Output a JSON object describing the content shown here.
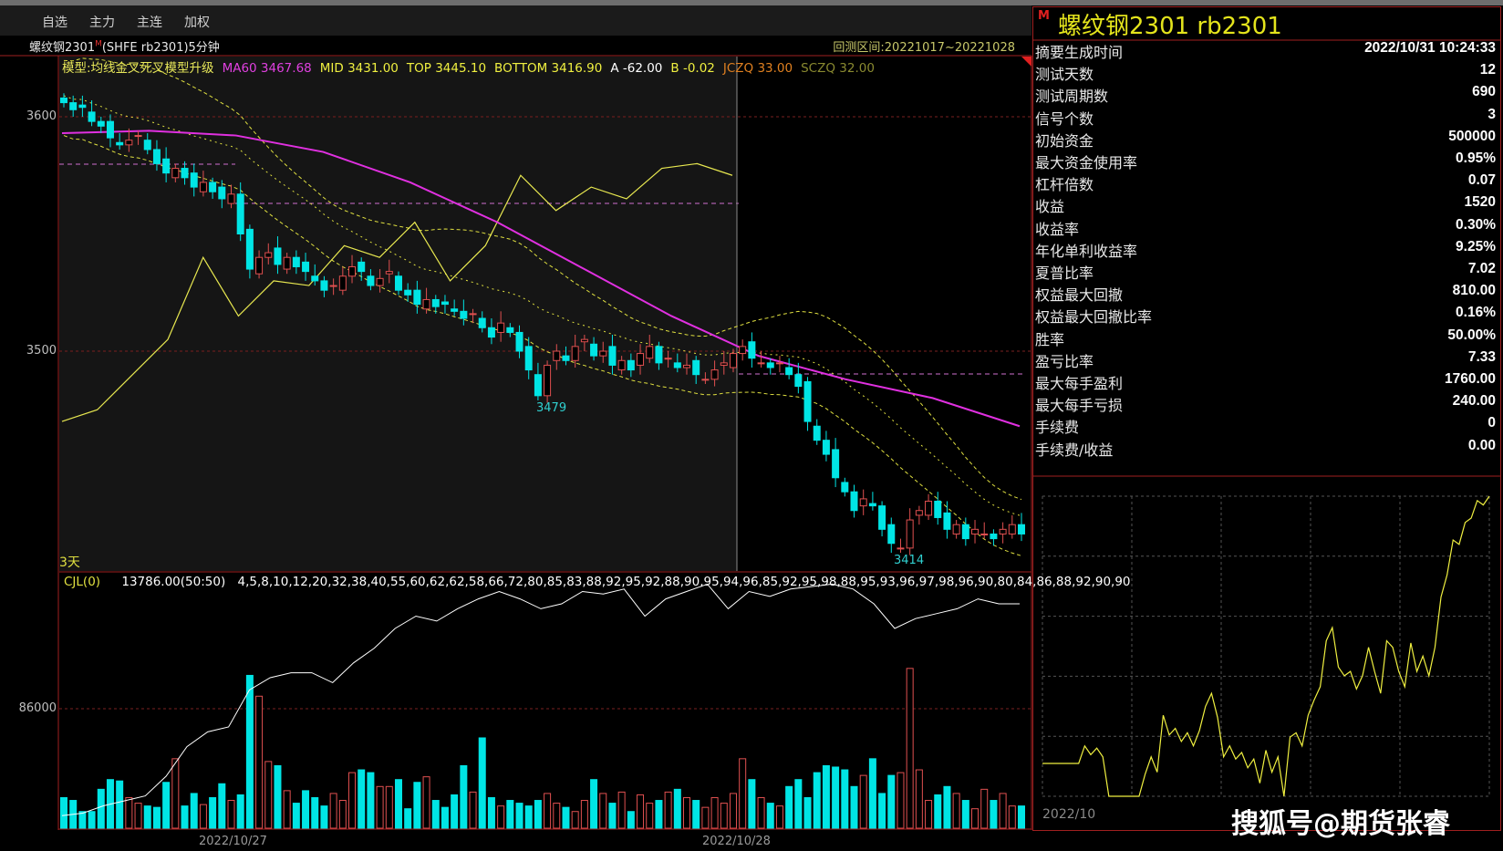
{
  "menu": [
    "自选",
    "主力",
    "主连",
    "加权"
  ],
  "chart": {
    "title": "螺纹钢2301",
    "title_sup": "M",
    "title_rest": "(SHFE rb2301)5分钟",
    "range": "回测区间:20221017~20221028",
    "legend": [
      {
        "text": "模型:均线金叉死叉模型升级",
        "color": "#e8e85a"
      },
      {
        "text": "MA60 3467.68",
        "color": "#e040e0"
      },
      {
        "text": "MID 3431.00",
        "color": "#f0f040"
      },
      {
        "text": "TOP 3445.10",
        "color": "#f0f040"
      },
      {
        "text": "BOTTOM 3416.90",
        "color": "#f0f040"
      },
      {
        "text": "A -62.00",
        "color": "#ffffff"
      },
      {
        "text": "B -0.02",
        "color": "#f0f040"
      },
      {
        "text": "JCZQ 33.00",
        "color": "#e08020"
      },
      {
        "text": "SCZQ 32.00",
        "color": "#8a8a30"
      }
    ],
    "y_ticks": [
      "3600",
      "3500"
    ],
    "period_label": "3天",
    "low_labels": [
      "3479",
      "3414"
    ],
    "dates": [
      "2022/10/27",
      "2022/10/28"
    ],
    "closes": [
      3606,
      3603,
      3604,
      3598,
      3596,
      3591,
      3588,
      3590,
      3592,
      3586,
      3580,
      3576,
      3578,
      3574,
      3570,
      3572,
      3568,
      3565,
      3567,
      3550,
      3535,
      3540,
      3542,
      3537,
      3540,
      3536,
      3534,
      3530,
      3526,
      3528,
      3532,
      3536,
      3534,
      3528,
      3531,
      3534,
      3526,
      3524,
      3520,
      3522,
      3519,
      3520,
      3517,
      3514,
      3516,
      3510,
      3506,
      3512,
      3508,
      3500,
      3492,
      3481,
      3494,
      3500,
      3496,
      3502,
      3505,
      3498,
      3500,
      3494,
      3496,
      3492,
      3499,
      3502,
      3495,
      3497,
      3493,
      3494,
      3490,
      3488,
      3492,
      3495,
      3499,
      3502,
      3497,
      3495,
      3493,
      3495,
      3490,
      3485,
      3470,
      3462,
      3456,
      3446,
      3440,
      3432,
      3437,
      3434,
      3424,
      3418,
      3416,
      3428,
      3432,
      3436,
      3429,
      3424,
      3426,
      3420,
      3424,
      3422,
      3420,
      3424,
      3426,
      3422
    ],
    "ma60": [
      3593,
      3594,
      3592,
      3585,
      3572,
      3555,
      3535,
      3515,
      3498,
      3488,
      3480,
      3468
    ],
    "indicator": [
      3470,
      3475,
      3490,
      3505,
      3540,
      3515,
      3530,
      3528,
      3545,
      3540,
      3555,
      3530,
      3545,
      3575,
      3560,
      3570,
      3565,
      3578,
      3580,
      3575
    ],
    "colors": {
      "up": "#e05050",
      "down": "#00e5e5",
      "ma60": "#e030e0",
      "band": "#e0e040",
      "grid": "#7a2020"
    }
  },
  "volume": {
    "label": "CJL(0)",
    "value": "13786.00(50:50)",
    "opid": [
      4,
      5,
      8,
      10,
      12,
      20,
      32,
      38,
      40,
      55,
      60,
      62,
      62,
      58,
      66,
      72,
      80,
      85,
      83,
      88,
      92,
      95,
      92,
      88,
      90,
      95,
      94,
      96,
      85,
      92,
      95,
      98,
      88,
      95,
      93,
      96,
      97,
      98,
      96,
      90,
      80,
      84,
      86,
      88,
      92,
      90,
      90
    ],
    "y_tick": "86000",
    "values": [
      22000,
      20000,
      12000,
      12000,
      28000,
      35000,
      34000,
      22000,
      18000,
      16000,
      15000,
      33000,
      50000,
      16000,
      25000,
      17000,
      22000,
      32000,
      20000,
      24000,
      110000,
      95000,
      48000,
      45000,
      27000,
      18000,
      27000,
      22000,
      16000,
      25000,
      20000,
      40000,
      42000,
      40000,
      30000,
      30000,
      35000,
      14000,
      33000,
      37000,
      20000,
      15000,
      24000,
      45000,
      26000,
      65000,
      22000,
      16000,
      20000,
      18000,
      16000,
      20000,
      25000,
      18000,
      15000,
      12000,
      20000,
      35000,
      25000,
      18000,
      26000,
      12000,
      24000,
      18000,
      20000,
      26000,
      28000,
      22000,
      20000,
      15000,
      22000,
      18000,
      25000,
      50000,
      35000,
      22000,
      18000,
      16000,
      30000,
      35000,
      22000,
      40000,
      45000,
      44000,
      42000,
      30000,
      38000,
      50000,
      25000,
      38000,
      40000,
      115000,
      42000,
      20000,
      24000,
      30000,
      25000,
      20000,
      14000,
      28000,
      20000,
      25000,
      16000,
      16000
    ]
  },
  "summary": {
    "m": "M",
    "title": "螺纹钢2301  rb2301",
    "rows": [
      [
        "摘要生成时间",
        "2022/10/31 10:24:33"
      ],
      [
        "测试天数",
        "12"
      ],
      [
        "测试周期数",
        "690"
      ],
      [
        "信号个数",
        "3"
      ],
      [
        "初始资金",
        "500000"
      ],
      [
        "最大资金使用率",
        "0.95%"
      ],
      [
        "杠杆倍数",
        "0.07"
      ],
      [
        "收益",
        "1520"
      ],
      [
        "收益率",
        "0.30%"
      ],
      [
        "年化单利收益率",
        "9.25%"
      ],
      [
        "夏普比率",
        "7.02"
      ],
      [
        "权益最大回撤",
        "810.00"
      ],
      [
        "权益最大回撤比率",
        "0.16%"
      ],
      [
        "胜率",
        "50.00%"
      ],
      [
        "盈亏比率",
        "7.33"
      ],
      [
        "最大每手盈利",
        "1760.00"
      ],
      [
        "最大每手亏损",
        "240.00"
      ],
      [
        "手续费",
        "0"
      ],
      [
        "手续费/收益",
        "0.00"
      ]
    ],
    "equity_date": "2022/10",
    "equity": [
      300,
      300,
      300,
      300,
      300,
      300,
      300,
      380,
      340,
      370,
      330,
      150,
      150,
      150,
      150,
      150,
      150,
      250,
      330,
      260,
      520,
      430,
      460,
      400,
      440,
      380,
      450,
      560,
      620,
      510,
      330,
      380,
      320,
      350,
      280,
      320,
      210,
      360,
      260,
      330,
      150,
      420,
      440,
      380,
      520,
      590,
      650,
      860,
      920,
      740,
      700,
      720,
      640,
      700,
      830,
      720,
      620,
      860,
      830,
      720,
      650,
      850,
      720,
      790,
      700,
      830,
      1060,
      1160,
      1320,
      1300,
      1400,
      1420,
      1500,
      1480,
      1520
    ]
  },
  "watermark": "搜狐号@期货张睿"
}
